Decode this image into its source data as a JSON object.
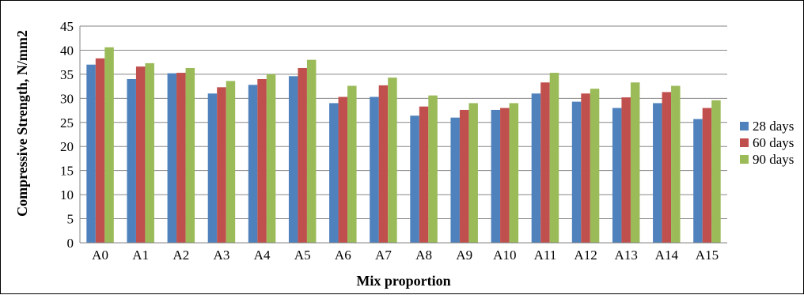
{
  "chart_data": {
    "type": "bar",
    "title": "",
    "xlabel": "Mix proportion",
    "ylabel": "Compressive Strength, N/mm2",
    "ylim": [
      0,
      45
    ],
    "yticks": [
      0,
      5,
      10,
      15,
      20,
      25,
      30,
      35,
      40,
      45
    ],
    "grid": true,
    "legend_position": "right",
    "categories": [
      "A0",
      "A1",
      "A2",
      "A3",
      "A4",
      "A5",
      "A6",
      "A7",
      "A8",
      "A9",
      "A10",
      "A11",
      "A12",
      "A13",
      "A14",
      "A15"
    ],
    "series": [
      {
        "name": "28 days",
        "color": "#4F81BD",
        "values": [
          37.0,
          34.0,
          35.2,
          31.0,
          32.8,
          34.6,
          29.0,
          30.3,
          26.4,
          26.0,
          27.6,
          31.0,
          29.3,
          28.0,
          29.0,
          25.7
        ]
      },
      {
        "name": "60 days",
        "color": "#C0504D",
        "values": [
          38.3,
          36.6,
          35.3,
          32.3,
          34.0,
          36.3,
          30.3,
          32.7,
          28.3,
          27.6,
          28.0,
          33.3,
          31.0,
          30.2,
          31.3,
          28.0
        ]
      },
      {
        "name": "90 days",
        "color": "#9BBB59",
        "values": [
          40.6,
          37.3,
          36.3,
          33.6,
          35.0,
          38.0,
          32.6,
          34.3,
          30.6,
          29.0,
          29.0,
          35.3,
          32.0,
          33.3,
          32.6,
          29.6
        ]
      }
    ]
  }
}
